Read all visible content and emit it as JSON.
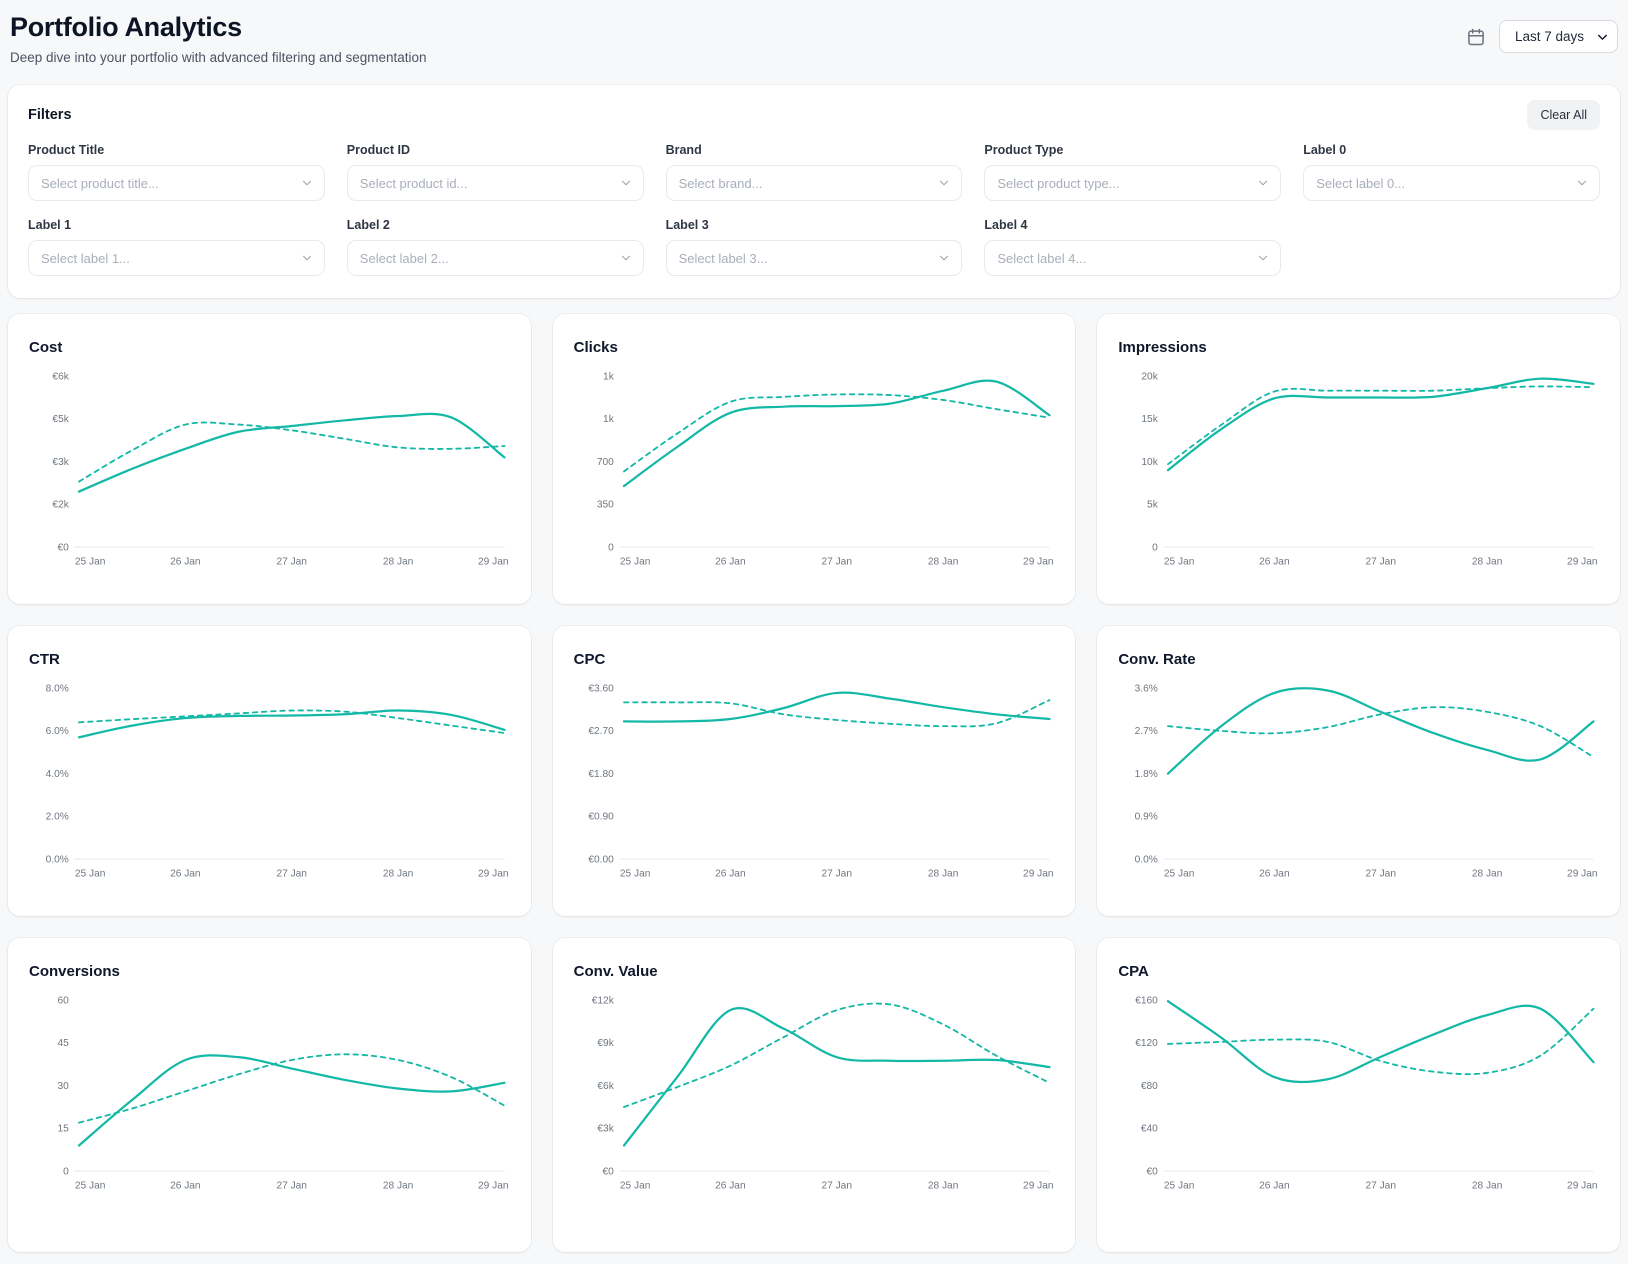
{
  "header": {
    "title": "Portfolio Analytics",
    "subtitle": "Deep dive into your portfolio with advanced filtering and segmentation",
    "date_range": {
      "value": "Last 7 days"
    }
  },
  "filters": {
    "title": "Filters",
    "clear_label": "Clear All",
    "fields": [
      {
        "label": "Product Title",
        "placeholder": "Select product title..."
      },
      {
        "label": "Product ID",
        "placeholder": "Select product id..."
      },
      {
        "label": "Brand",
        "placeholder": "Select brand..."
      },
      {
        "label": "Product Type",
        "placeholder": "Select product type..."
      },
      {
        "label": "Label 0",
        "placeholder": "Select label 0..."
      },
      {
        "label": "Label 1",
        "placeholder": "Select label 1..."
      },
      {
        "label": "Label 2",
        "placeholder": "Select label 2..."
      },
      {
        "label": "Label 3",
        "placeholder": "Select label 3..."
      },
      {
        "label": "Label 4",
        "placeholder": "Select label 4..."
      }
    ]
  },
  "colors": {
    "accent": "#14b8a6",
    "axis_line": "#e5e8eb",
    "tick_text": "#6e7680"
  },
  "chart_data": [
    {
      "type": "line",
      "title": "Cost",
      "x": [
        "25 Jan",
        "26 Jan",
        "27 Jan",
        "28 Jan",
        "29 Jan"
      ],
      "y_tick_labels": [
        "€6k",
        "€5k",
        "€3k",
        "€2k",
        "€0"
      ],
      "ylim": [
        0,
        6000
      ],
      "grid": false,
      "legend": "none",
      "series": [
        {
          "name": "solid",
          "style": "solid",
          "values": [
            1950,
            2750,
            3450,
            4050,
            4250,
            4450,
            4600,
            4550,
            3150
          ]
        },
        {
          "name": "dashed",
          "style": "dashed",
          "values": [
            2300,
            3400,
            4300,
            4300,
            4100,
            3800,
            3500,
            3450,
            3550
          ]
        }
      ]
    },
    {
      "type": "line",
      "title": "Clicks",
      "x": [
        "25 Jan",
        "26 Jan",
        "27 Jan",
        "28 Jan",
        "29 Jan"
      ],
      "y_tick_labels": [
        "1k",
        "1k",
        "700",
        "350",
        "0"
      ],
      "ylim": [
        0,
        1400
      ],
      "grid": false,
      "legend": "none",
      "series": [
        {
          "name": "solid",
          "style": "solid",
          "values": [
            500,
            820,
            1100,
            1150,
            1155,
            1175,
            1280,
            1355,
            1080
          ]
        },
        {
          "name": "dashed",
          "style": "dashed",
          "values": [
            620,
            930,
            1190,
            1230,
            1250,
            1245,
            1205,
            1130,
            1060
          ]
        }
      ]
    },
    {
      "type": "line",
      "title": "Impressions",
      "x": [
        "25 Jan",
        "26 Jan",
        "27 Jan",
        "28 Jan",
        "29 Jan"
      ],
      "y_tick_labels": [
        "20k",
        "15k",
        "10k",
        "5k",
        "0"
      ],
      "ylim": [
        0,
        20000
      ],
      "grid": false,
      "legend": "none",
      "series": [
        {
          "name": "solid",
          "style": "solid",
          "values": [
            9000,
            13800,
            17400,
            17500,
            17500,
            17600,
            18600,
            19700,
            19100
          ]
        },
        {
          "name": "dashed",
          "style": "dashed",
          "values": [
            9700,
            14300,
            18200,
            18300,
            18300,
            18300,
            18600,
            18800,
            18700
          ]
        }
      ]
    },
    {
      "type": "line",
      "title": "CTR",
      "x": [
        "25 Jan",
        "26 Jan",
        "27 Jan",
        "28 Jan",
        "29 Jan"
      ],
      "y_tick_labels": [
        "8.0%",
        "6.0%",
        "4.0%",
        "2.0%",
        "0.0%"
      ],
      "ylim": [
        0,
        8
      ],
      "grid": false,
      "legend": "none",
      "series": [
        {
          "name": "solid",
          "style": "solid",
          "values": [
            5.7,
            6.25,
            6.6,
            6.7,
            6.72,
            6.78,
            6.95,
            6.75,
            6.05
          ]
        },
        {
          "name": "dashed",
          "style": "dashed",
          "values": [
            6.4,
            6.55,
            6.68,
            6.82,
            6.95,
            6.9,
            6.6,
            6.25,
            5.9
          ]
        }
      ]
    },
    {
      "type": "line",
      "title": "CPC",
      "x": [
        "25 Jan",
        "26 Jan",
        "27 Jan",
        "28 Jan",
        "29 Jan"
      ],
      "y_tick_labels": [
        "€3.60",
        "€2.70",
        "€1.80",
        "€0.90",
        "€0.00"
      ],
      "ylim": [
        0,
        3.6
      ],
      "grid": false,
      "legend": "none",
      "series": [
        {
          "name": "solid",
          "style": "solid",
          "values": [
            2.9,
            2.9,
            2.95,
            3.18,
            3.5,
            3.38,
            3.2,
            3.05,
            2.95
          ]
        },
        {
          "name": "dashed",
          "style": "dashed",
          "values": [
            3.3,
            3.3,
            3.28,
            3.05,
            2.93,
            2.85,
            2.8,
            2.86,
            3.35
          ]
        }
      ]
    },
    {
      "type": "line",
      "title": "Conv. Rate",
      "x": [
        "25 Jan",
        "26 Jan",
        "27 Jan",
        "28 Jan",
        "29 Jan"
      ],
      "y_tick_labels": [
        "3.6%",
        "2.7%",
        "1.8%",
        "0.9%",
        "0.0%"
      ],
      "ylim": [
        0,
        3.6
      ],
      "grid": false,
      "legend": "none",
      "series": [
        {
          "name": "solid",
          "style": "solid",
          "values": [
            1.8,
            2.8,
            3.5,
            3.55,
            3.1,
            2.65,
            2.3,
            2.1,
            2.9
          ]
        },
        {
          "name": "dashed",
          "style": "dashed",
          "values": [
            2.8,
            2.7,
            2.65,
            2.78,
            3.05,
            3.2,
            3.1,
            2.8,
            2.15
          ]
        }
      ]
    },
    {
      "type": "line",
      "title": "Conversions",
      "x": [
        "25 Jan",
        "26 Jan",
        "27 Jan",
        "28 Jan",
        "29 Jan"
      ],
      "y_tick_labels": [
        "60",
        "45",
        "30",
        "15",
        "0"
      ],
      "ylim": [
        0,
        60
      ],
      "grid": false,
      "legend": "none",
      "series": [
        {
          "name": "solid",
          "style": "solid",
          "values": [
            9,
            25,
            39,
            40,
            36,
            32,
            29,
            28,
            31
          ]
        },
        {
          "name": "dashed",
          "style": "dashed",
          "values": [
            17,
            22,
            28,
            34,
            39,
            41,
            39,
            33,
            23
          ]
        }
      ]
    },
    {
      "type": "line",
      "title": "Conv. Value",
      "x": [
        "25 Jan",
        "26 Jan",
        "27 Jan",
        "28 Jan",
        "29 Jan"
      ],
      "y_tick_labels": [
        "€12k",
        "€9k",
        "€6k",
        "€3k",
        "€0"
      ],
      "ylim": [
        0,
        12000
      ],
      "grid": false,
      "legend": "none",
      "series": [
        {
          "name": "solid",
          "style": "solid",
          "values": [
            1800,
            6600,
            11300,
            10000,
            8000,
            7750,
            7750,
            7800,
            7300
          ]
        },
        {
          "name": "dashed",
          "style": "dashed",
          "values": [
            4500,
            5900,
            7400,
            9400,
            11300,
            11700,
            10300,
            8100,
            6200
          ]
        }
      ]
    },
    {
      "type": "line",
      "title": "CPA",
      "x": [
        "25 Jan",
        "26 Jan",
        "27 Jan",
        "28 Jan",
        "29 Jan"
      ],
      "y_tick_labels": [
        "€160",
        "€120",
        "€80",
        "€40",
        "€0"
      ],
      "ylim": [
        0,
        160
      ],
      "grid": false,
      "legend": "none",
      "series": [
        {
          "name": "solid",
          "style": "solid",
          "values": [
            159,
            125,
            88,
            86,
            107,
            128,
            146,
            152,
            102
          ]
        },
        {
          "name": "dashed",
          "style": "dashed",
          "values": [
            119,
            121,
            123,
            121,
            103,
            93,
            92,
            108,
            152
          ]
        }
      ]
    }
  ]
}
